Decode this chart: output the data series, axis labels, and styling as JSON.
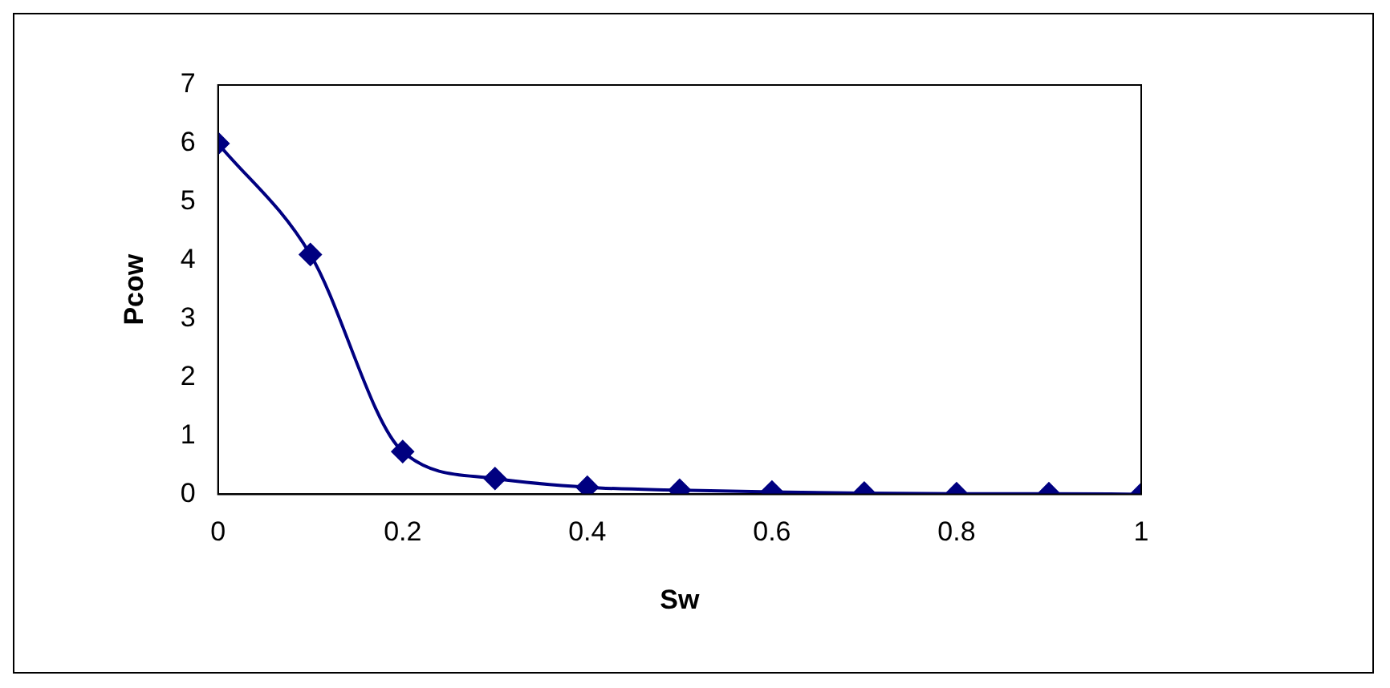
{
  "chart_data": {
    "type": "line",
    "xlabel": "Sw",
    "ylabel": "Pcow",
    "x": [
      0,
      0.1,
      0.2,
      0.3,
      0.4,
      0.5,
      0.6,
      0.7,
      0.8,
      0.9,
      1
    ],
    "series": [
      {
        "color": "#000080",
        "values": [
          6,
          4.1,
          0.73,
          0.27,
          0.12,
          0.07,
          0.04,
          0.02,
          0.01,
          0.01,
          0
        ]
      }
    ],
    "xlim": [
      0,
      1
    ],
    "xticks": [
      0,
      0.2,
      0.4,
      0.6,
      0.8,
      1
    ],
    "ylim": [
      0,
      7
    ],
    "yticks": [
      0,
      1,
      2,
      3,
      4,
      5,
      6,
      7
    ],
    "grid": false,
    "legend": false,
    "marker": "diamond",
    "line_style": "solid"
  }
}
